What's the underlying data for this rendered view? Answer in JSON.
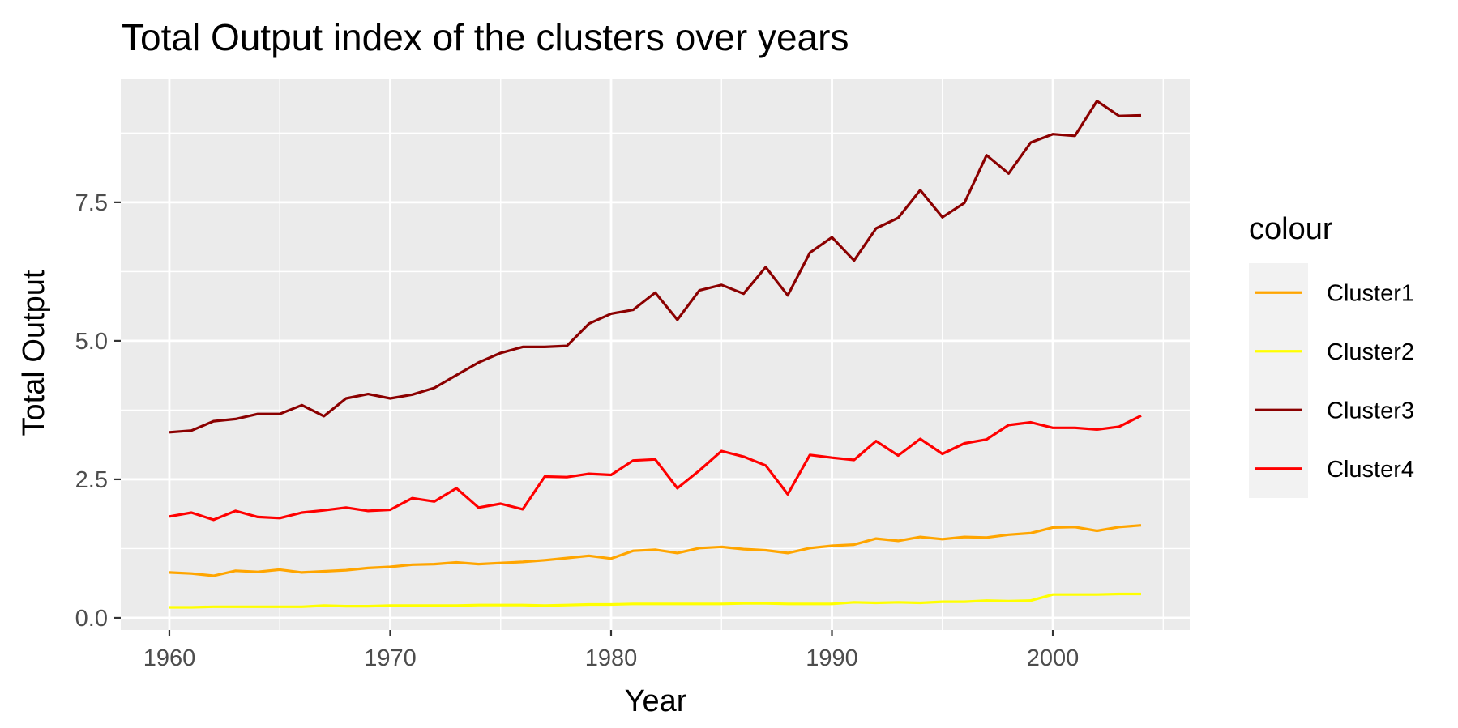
{
  "chart_data": {
    "type": "line",
    "title": "Total Output index of the clusters over years",
    "xlabel": "Year",
    "ylabel": "Total Output",
    "xlim": [
      1957.8,
      2006.2
    ],
    "ylim": [
      -0.22,
      9.72
    ],
    "x_ticks": [
      1960,
      1970,
      1980,
      1990,
      2000
    ],
    "y_ticks": [
      0.0,
      2.5,
      5.0,
      7.5
    ],
    "y_tick_labels": [
      "0.0",
      "2.5",
      "5.0",
      "7.5"
    ],
    "grid": true,
    "panel_background": "#ebebeb",
    "legend": {
      "title": "colour",
      "position": "right"
    },
    "x": [
      1960,
      1961,
      1962,
      1963,
      1964,
      1965,
      1966,
      1967,
      1968,
      1969,
      1970,
      1971,
      1972,
      1973,
      1974,
      1975,
      1976,
      1977,
      1978,
      1979,
      1980,
      1981,
      1982,
      1983,
      1984,
      1985,
      1986,
      1987,
      1988,
      1989,
      1990,
      1991,
      1992,
      1993,
      1994,
      1995,
      1996,
      1997,
      1998,
      1999,
      2000,
      2001,
      2002,
      2003,
      2004
    ],
    "series": [
      {
        "name": "Cluster1",
        "color": "#ffa500",
        "values": [
          0.82,
          0.8,
          0.76,
          0.85,
          0.83,
          0.87,
          0.82,
          0.84,
          0.86,
          0.9,
          0.92,
          0.96,
          0.97,
          1.0,
          0.97,
          0.99,
          1.01,
          1.04,
          1.08,
          1.12,
          1.07,
          1.21,
          1.23,
          1.17,
          1.26,
          1.28,
          1.24,
          1.22,
          1.17,
          1.26,
          1.3,
          1.32,
          1.43,
          1.39,
          1.46,
          1.42,
          1.46,
          1.45,
          1.5,
          1.53,
          1.63,
          1.64,
          1.57,
          1.64,
          1.67
        ]
      },
      {
        "name": "Cluster2",
        "color": "#ffff00",
        "values": [
          0.19,
          0.19,
          0.2,
          0.2,
          0.2,
          0.2,
          0.2,
          0.22,
          0.21,
          0.21,
          0.22,
          0.22,
          0.22,
          0.22,
          0.23,
          0.23,
          0.23,
          0.22,
          0.23,
          0.24,
          0.24,
          0.25,
          0.25,
          0.25,
          0.25,
          0.25,
          0.26,
          0.26,
          0.25,
          0.25,
          0.25,
          0.28,
          0.27,
          0.28,
          0.27,
          0.29,
          0.29,
          0.31,
          0.3,
          0.31,
          0.42,
          0.42,
          0.42,
          0.43,
          0.43
        ]
      },
      {
        "name": "Cluster3",
        "color": "#8b0000",
        "values": [
          3.35,
          3.38,
          3.55,
          3.59,
          3.68,
          3.68,
          3.84,
          3.64,
          3.96,
          4.04,
          3.96,
          4.03,
          4.15,
          4.38,
          4.61,
          4.78,
          4.89,
          4.89,
          4.91,
          5.31,
          5.49,
          5.56,
          5.87,
          5.38,
          5.91,
          6.01,
          5.85,
          6.33,
          5.82,
          6.59,
          6.87,
          6.45,
          7.03,
          7.22,
          7.72,
          7.23,
          7.49,
          8.35,
          8.02,
          8.58,
          8.73,
          8.7,
          9.33,
          9.06,
          9.07
        ]
      },
      {
        "name": "Cluster4",
        "color": "#ff0000",
        "values": [
          1.83,
          1.9,
          1.77,
          1.93,
          1.82,
          1.8,
          1.9,
          1.94,
          1.99,
          1.93,
          1.95,
          2.16,
          2.1,
          2.34,
          1.99,
          2.06,
          1.96,
          2.55,
          2.54,
          2.6,
          2.58,
          2.84,
          2.86,
          2.34,
          2.66,
          3.01,
          2.91,
          2.75,
          2.23,
          2.94,
          2.89,
          2.85,
          3.19,
          2.93,
          3.23,
          2.96,
          3.15,
          3.22,
          3.48,
          3.53,
          3.43,
          3.43,
          3.4,
          3.45,
          3.65
        ]
      }
    ]
  }
}
